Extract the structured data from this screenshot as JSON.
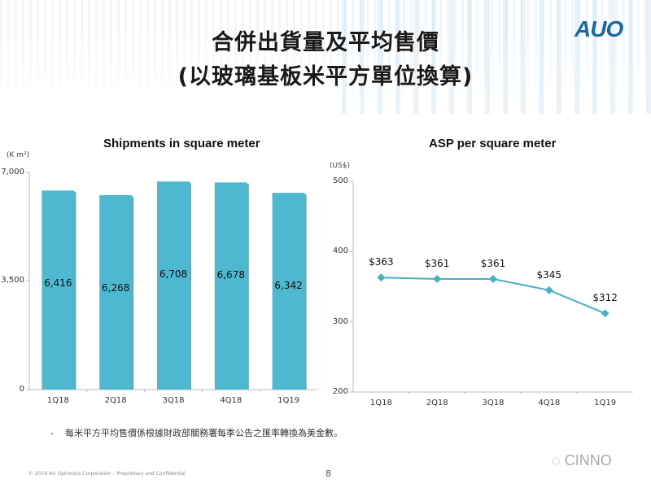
{
  "header": {
    "title_line1": "合併出貨量及平均售價",
    "title_line2": "(以玻璃基板米平方單位換算)",
    "logo": "AUO"
  },
  "colors": {
    "bar": "#4db8cf",
    "bar_shadow": "#2f7d90",
    "line": "#4aaec4",
    "axis": "#bbbbbb",
    "logo": "#1a6aa0"
  },
  "chart_data": [
    {
      "type": "bar",
      "title": "Shipments in square meter",
      "ylabel": "(K m²)",
      "xlabel": "",
      "categories": [
        "1Q18",
        "2Q18",
        "3Q18",
        "4Q18",
        "1Q19"
      ],
      "values": [
        6416,
        6268,
        6708,
        6678,
        6342
      ],
      "value_labels": [
        "6,416",
        "6,268",
        "6,708",
        "6,678",
        "6,342"
      ],
      "yticks": [
        "0",
        "3,500",
        "7,000"
      ],
      "ylim": [
        0,
        7000
      ],
      "grid": false,
      "legend": null
    },
    {
      "type": "line",
      "title": "ASP per square meter",
      "ylabel": "(US$)",
      "xlabel": "",
      "categories": [
        "1Q18",
        "2Q18",
        "3Q18",
        "4Q18",
        "1Q19"
      ],
      "values": [
        363,
        361,
        361,
        345,
        312
      ],
      "value_labels": [
        "$363",
        "$361",
        "$361",
        "$345",
        "$312"
      ],
      "yticks": [
        "200",
        "300",
        "400",
        "500"
      ],
      "ylim": [
        200,
        500
      ],
      "marker": "diamond",
      "grid": false,
      "legend": null
    }
  ],
  "footer": {
    "note_bullet": "-",
    "note": "每米平方平均售價係根據財政部關務署每季公告之匯率轉換為美金數。",
    "copyright": "© 2019 AU Optronics Corporation – Proprietary and Confidential",
    "page": "8",
    "watermark": "CINNO"
  }
}
